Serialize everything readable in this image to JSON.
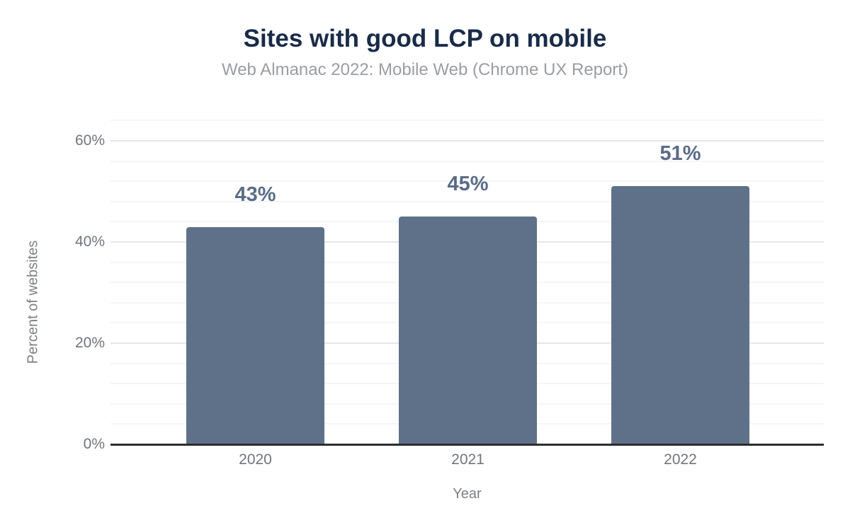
{
  "chart_data": {
    "type": "bar",
    "title": "Sites with good LCP on mobile",
    "subtitle": "Web Almanac 2022: Mobile Web (Chrome UX Report)",
    "categories": [
      "2020",
      "2021",
      "2022"
    ],
    "values": [
      43,
      45,
      51
    ],
    "data_labels": [
      "43%",
      "45%",
      "51%"
    ],
    "xlabel": "Year",
    "ylabel": "Percent of websites",
    "y_ticks": [
      {
        "value": 0,
        "label": "0%"
      },
      {
        "value": 20,
        "label": "20%"
      },
      {
        "value": 40,
        "label": "40%"
      },
      {
        "value": 60,
        "label": "60%"
      }
    ],
    "ylim": [
      0,
      65
    ],
    "minor_grid_step_pct": 4,
    "grid": true,
    "legend_position": "none",
    "colors": {
      "bar": "#5f7089",
      "data_label": "#5a6c87",
      "title": "#1a2b49",
      "subtitle": "#9a9da3",
      "tick_label": "#71757d",
      "axis_title": "#7d8086",
      "axis_line": "#2d2d2d",
      "major_grid": "#e4e6e9",
      "minor_grid": "#f4f5f7"
    }
  }
}
